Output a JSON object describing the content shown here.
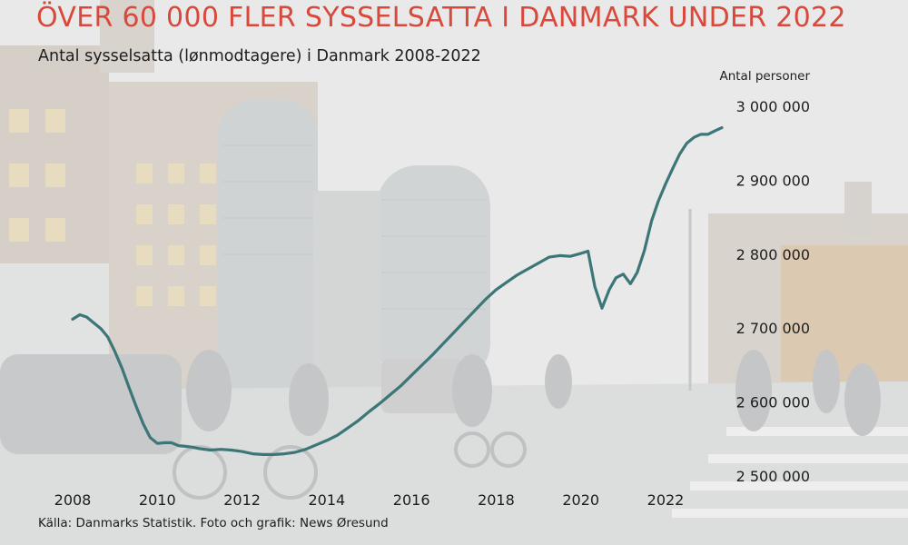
{
  "header": {
    "title": "ÖVER 60 000 FLER SYSSELSATTA I DANMARK UNDER 2022",
    "subtitle": "Antal sysselsatta (lønmodtagere) i Danmark 2008-2022",
    "y_unit": "Antal personer"
  },
  "footer": {
    "source": "Källa: Danmarks Statistik. Foto och grafik: News Øresund"
  },
  "colors": {
    "title": "#d9493b",
    "line": "#3c7677",
    "text": "#1d1d1d"
  },
  "chart_data": {
    "type": "line",
    "title": "ÖVER 60 000 FLER SYSSELSATTA I DANMARK UNDER 2022",
    "subtitle": "Antal sysselsatta (lønmodtagere) i Danmark 2008-2022",
    "xlabel": "",
    "ylabel": "Antal personer",
    "xlim": [
      2008,
      2023.5
    ],
    "ylim": [
      2500000,
      3000000
    ],
    "x_ticks": [
      2008,
      2010,
      2012,
      2014,
      2016,
      2018,
      2020,
      2022
    ],
    "x_tick_labels": [
      "2008",
      "2010",
      "2012",
      "2014",
      "2016",
      "2018",
      "2020",
      "2022"
    ],
    "y_ticks": [
      2500000,
      2600000,
      2700000,
      2800000,
      2900000,
      3000000
    ],
    "y_tick_labels": [
      "2 500 000",
      "2 600 000",
      "2 700 000",
      "2 800 000",
      "2 900 000",
      "3 000 000"
    ],
    "grid": false,
    "legend": "none",
    "series": [
      {
        "x": [
          2008.0,
          2008.17,
          2008.33,
          2008.5,
          2008.67,
          2008.83,
          2009.0,
          2009.17,
          2009.33,
          2009.5,
          2009.67,
          2009.83,
          2010.0,
          2010.17,
          2010.33,
          2010.5,
          2010.67,
          2010.83,
          2011.0,
          2011.25,
          2011.5,
          2011.75,
          2012.0,
          2012.25,
          2012.5,
          2012.75,
          2013.0,
          2013.25,
          2013.5,
          2013.75,
          2014.0,
          2014.25,
          2014.5,
          2014.75,
          2015.0,
          2015.25,
          2015.5,
          2015.75,
          2016.0,
          2016.25,
          2016.5,
          2016.75,
          2017.0,
          2017.25,
          2017.5,
          2017.75,
          2018.0,
          2018.25,
          2018.5,
          2018.75,
          2019.0,
          2019.25,
          2019.5,
          2019.75,
          2020.0,
          2020.17,
          2020.33,
          2020.5,
          2020.67,
          2020.83,
          2021.0,
          2021.17,
          2021.33,
          2021.5,
          2021.67,
          2021.83,
          2022.0,
          2022.17,
          2022.33,
          2022.5,
          2022.67,
          2022.83,
          2023.0,
          2023.17,
          2023.33
        ],
        "values": [
          2712000,
          2718000,
          2715000,
          2707000,
          2699000,
          2688000,
          2668000,
          2645000,
          2620000,
          2594000,
          2570000,
          2552000,
          2544000,
          2545000,
          2545000,
          2541000,
          2540000,
          2539000,
          2537000,
          2535000,
          2536000,
          2535000,
          2533000,
          2530000,
          2529000,
          2529000,
          2530000,
          2532000,
          2536000,
          2542000,
          2548000,
          2555000,
          2565000,
          2575000,
          2587000,
          2598000,
          2610000,
          2622000,
          2636000,
          2650000,
          2664000,
          2679000,
          2694000,
          2709000,
          2724000,
          2739000,
          2752000,
          2762000,
          2772000,
          2780000,
          2788000,
          2796000,
          2798000,
          2797000,
          2801000,
          2804000,
          2756000,
          2727000,
          2752000,
          2768000,
          2773000,
          2760000,
          2775000,
          2805000,
          2845000,
          2872000,
          2895000,
          2916000,
          2935000,
          2950000,
          2958000,
          2962000,
          2962000,
          2967000,
          2971000
        ]
      }
    ]
  }
}
